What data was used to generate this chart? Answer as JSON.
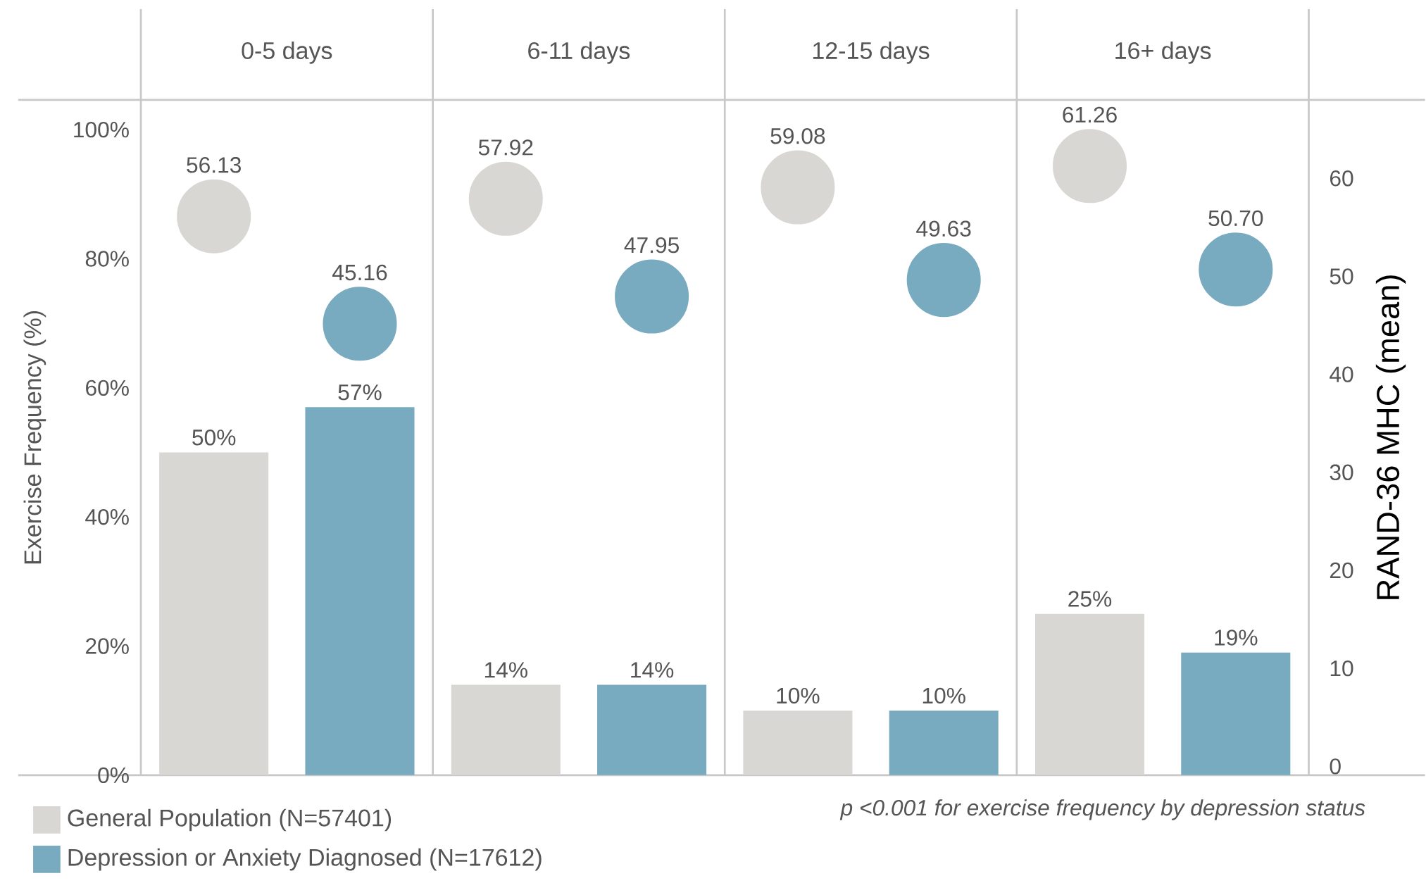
{
  "chart_data": {
    "type": "bar",
    "categories": [
      "0-5 days",
      "6-11 days",
      "12-15 days",
      "16+ days"
    ],
    "ylabel": "Exercise Frequency (%)",
    "y2label": "RAND-36 MHC (mean)",
    "ylim": [
      0,
      104.6
    ],
    "yticks": [
      {
        "value": 0,
        "label": "0%"
      },
      {
        "value": 20,
        "label": "20%"
      },
      {
        "value": 40,
        "label": "40%"
      },
      {
        "value": 60,
        "label": "60%"
      },
      {
        "value": 80,
        "label": "80%"
      },
      {
        "value": 100,
        "label": "100%"
      }
    ],
    "y2lim": [
      -0.9,
      68
    ],
    "y2ticks": [
      0,
      10,
      20,
      30,
      40,
      50,
      60
    ],
    "series": [
      {
        "name": "General Population (N=57401)",
        "color": "#d9d7d4",
        "values": [
          50,
          14,
          10,
          25
        ],
        "value_labels": [
          "50%",
          "14%",
          "10%",
          "25%"
        ]
      },
      {
        "name": "Depression or Anxiety Diagnosed (N=17612)",
        "color": "#79abc0",
        "values": [
          57,
          14,
          10,
          19
        ],
        "value_labels": [
          "57%",
          "14%",
          "10%",
          "19%"
        ]
      },
      {
        "type": "scatter",
        "axis": "y2",
        "color": "#d9d7d4",
        "values": [
          56.13,
          57.92,
          59.08,
          61.26
        ],
        "value_labels": [
          "56.13",
          "57.92",
          "59.08",
          "61.26"
        ]
      },
      {
        "type": "scatter",
        "axis": "y2",
        "color": "#79abc0",
        "values": [
          45.16,
          47.95,
          49.63,
          50.7
        ],
        "value_labels": [
          "45.16",
          "47.95",
          "49.63",
          "50.70"
        ]
      }
    ],
    "marker": "circle",
    "legend": "bottom left",
    "annotations": [
      "p <0.001 for exercise frequency by depression status"
    ]
  }
}
